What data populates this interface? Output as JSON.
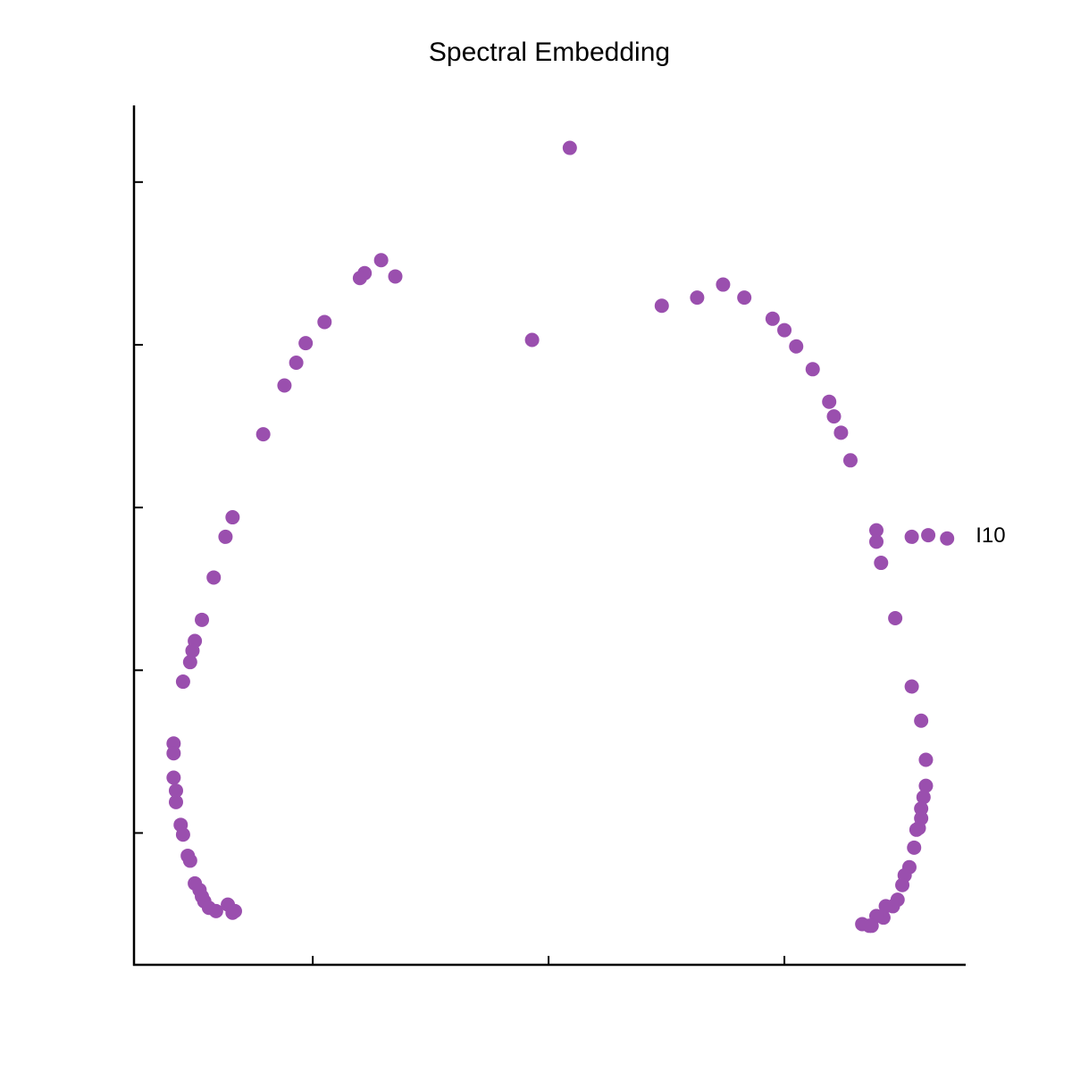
{
  "chart_data": {
    "type": "scatter",
    "title": "Spectral Embedding",
    "color": "#9a4fae",
    "xlim": [
      -1.758,
      1.765
    ],
    "ylim": [
      -2.81,
      2.46
    ],
    "xticks": [
      -1,
      0,
      1
    ],
    "yticks": [
      -2,
      -1,
      0,
      1,
      2
    ],
    "x": [
      0.09,
      -0.07,
      -0.71,
      -0.65,
      -0.78,
      -0.8,
      -0.95,
      -1.03,
      -1.07,
      -1.12,
      -1.21,
      -1.34,
      -1.37,
      -1.42,
      -1.47,
      -1.5,
      -1.51,
      -1.52,
      -1.55,
      -1.59,
      -1.59,
      -1.59,
      -1.58,
      -1.58,
      -1.56,
      -1.55,
      -1.53,
      -1.52,
      -1.5,
      -1.48,
      -1.47,
      -1.46,
      -1.44,
      -1.41,
      -1.36,
      -1.34,
      -1.33,
      0.48,
      0.63,
      0.74,
      0.83,
      0.95,
      1.0,
      1.05,
      1.12,
      1.19,
      1.21,
      1.24,
      1.28,
      1.39,
      1.39,
      1.41,
      1.54,
      1.61,
      1.69,
      1.47,
      1.54,
      1.58,
      1.6,
      1.6,
      1.59,
      1.58,
      1.58,
      1.57,
      1.56,
      1.55,
      1.53,
      1.51,
      1.5,
      1.48,
      1.46,
      1.43,
      1.42,
      1.39,
      1.37,
      1.33,
      1.36
    ],
    "values": [
      2.21,
      1.03,
      1.52,
      1.42,
      1.44,
      1.41,
      1.14,
      1.01,
      0.89,
      0.75,
      0.45,
      -0.06,
      -0.18,
      -0.43,
      -0.69,
      -0.82,
      -0.88,
      -0.95,
      -1.07,
      -1.45,
      -1.51,
      -1.66,
      -1.74,
      -1.81,
      -1.95,
      -2.01,
      -2.14,
      -2.17,
      -2.31,
      -2.35,
      -2.39,
      -2.42,
      -2.46,
      -2.48,
      -2.44,
      -2.49,
      -2.48,
      1.24,
      1.29,
      1.37,
      1.29,
      1.16,
      1.09,
      0.99,
      0.85,
      0.65,
      0.56,
      0.46,
      0.29,
      -0.14,
      -0.21,
      -0.34,
      -0.18,
      -0.17,
      -0.19,
      -0.68,
      -1.1,
      -1.31,
      -1.55,
      -1.71,
      -1.78,
      -1.85,
      -1.91,
      -1.97,
      -1.98,
      -2.09,
      -2.21,
      -2.26,
      -2.32,
      -2.41,
      -2.45,
      -2.45,
      -2.52,
      -2.51,
      -2.57,
      -2.56,
      -2.57
    ],
    "annotations": [
      {
        "text": "I10",
        "x": 1.69,
        "y": -0.19
      }
    ]
  }
}
